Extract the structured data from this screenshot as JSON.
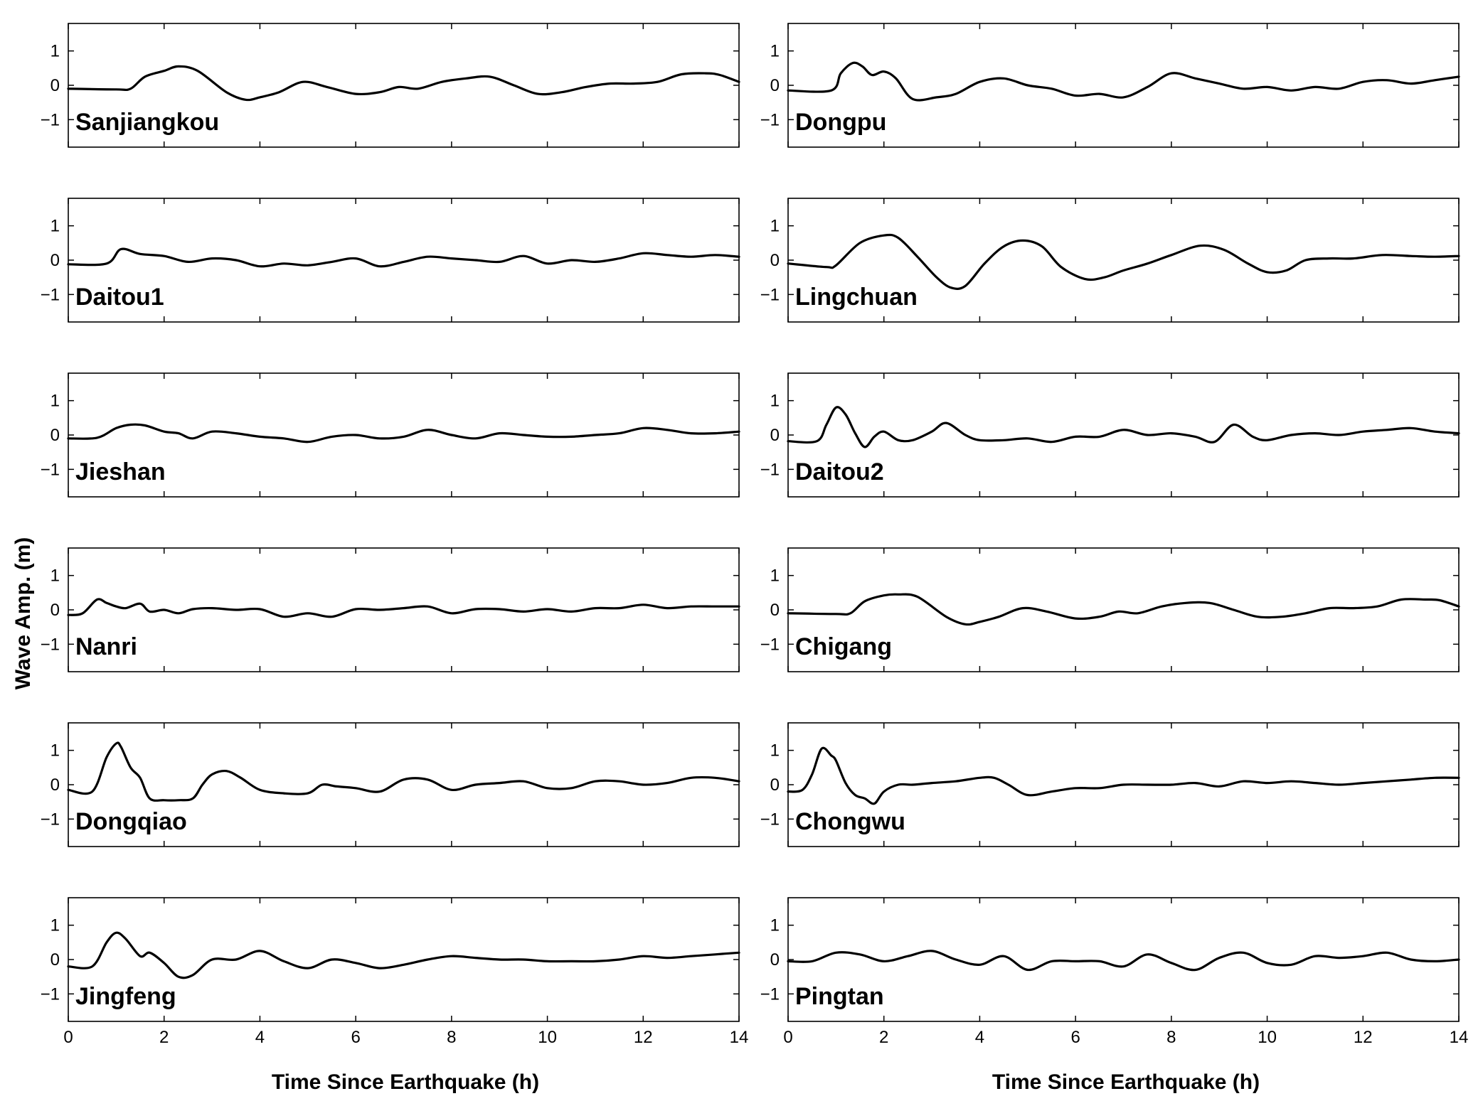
{
  "chart_data": {
    "type": "line",
    "layout": "6x2 small multiples",
    "ylabel": "Wave Amp. (m)",
    "xlabel": "Time Since Earthquake (h)",
    "xlim": [
      0,
      14
    ],
    "ylim": [
      -1.8,
      1.8
    ],
    "xticks": [
      0,
      2,
      4,
      6,
      8,
      10,
      12,
      14
    ],
    "yticks": [
      -1,
      0,
      1
    ],
    "ytick_labels": [
      "−1",
      "0",
      "1"
    ],
    "colors": {
      "line": "#000000",
      "axes": "#000000",
      "background": "#ffffff"
    },
    "panels": [
      {
        "name": "Sanjiangkou",
        "column": "left",
        "row": 0,
        "x": [
          0,
          1,
          1.3,
          1.6,
          2,
          2.3,
          2.7,
          3.3,
          3.7,
          4,
          4.4,
          4.9,
          5.4,
          6,
          6.5,
          6.9,
          7.3,
          7.8,
          8.3,
          8.8,
          9.3,
          9.8,
          10.3,
          10.8,
          11.3,
          11.8,
          12.3,
          12.8,
          13.3,
          13.6,
          14
        ],
        "y": [
          -0.1,
          -0.12,
          -0.1,
          0.25,
          0.42,
          0.55,
          0.42,
          -0.2,
          -0.42,
          -0.35,
          -0.2,
          0.1,
          -0.05,
          -0.25,
          -0.2,
          -0.05,
          -0.1,
          0.1,
          0.2,
          0.25,
          0,
          -0.25,
          -0.2,
          -0.05,
          0.05,
          0.05,
          0.1,
          0.32,
          0.35,
          0.3,
          0.1
        ]
      },
      {
        "name": "Dongpu",
        "column": "right",
        "row": 0,
        "x": [
          0,
          0.9,
          1.1,
          1.35,
          1.55,
          1.75,
          2,
          2.25,
          2.6,
          3.1,
          3.5,
          4,
          4.5,
          5,
          5.5,
          6,
          6.5,
          7,
          7.5,
          8,
          8.5,
          9,
          9.5,
          10,
          10.5,
          11,
          11.5,
          12,
          12.5,
          13,
          13.5,
          14
        ],
        "y": [
          -0.15,
          -0.15,
          0.35,
          0.65,
          0.55,
          0.3,
          0.4,
          0.2,
          -0.4,
          -0.35,
          -0.25,
          0.1,
          0.2,
          0,
          -0.1,
          -0.3,
          -0.25,
          -0.35,
          -0.05,
          0.35,
          0.2,
          0.05,
          -0.1,
          -0.05,
          -0.15,
          -0.05,
          -0.1,
          0.1,
          0.15,
          0.05,
          0.15,
          0.25
        ]
      },
      {
        "name": "Daitou1",
        "column": "left",
        "row": 1,
        "x": [
          0,
          0.8,
          1.1,
          1.5,
          2,
          2.5,
          3,
          3.5,
          4,
          4.5,
          5,
          5.5,
          6,
          6.5,
          7,
          7.5,
          8,
          8.5,
          9,
          9.5,
          10,
          10.5,
          11,
          11.5,
          12,
          12.5,
          13,
          13.5,
          14
        ],
        "y": [
          -0.12,
          -0.1,
          0.32,
          0.18,
          0.12,
          -0.05,
          0.05,
          0,
          -0.18,
          -0.1,
          -0.15,
          -0.05,
          0.05,
          -0.18,
          -0.05,
          0.1,
          0.05,
          0,
          -0.05,
          0.12,
          -0.1,
          0,
          -0.05,
          0.05,
          0.2,
          0.15,
          0.1,
          0.15,
          0.1
        ]
      },
      {
        "name": "Lingchuan",
        "column": "right",
        "row": 1,
        "x": [
          0,
          0.8,
          1,
          1.5,
          2,
          2.3,
          2.7,
          3.1,
          3.4,
          3.7,
          4.1,
          4.5,
          4.9,
          5.3,
          5.7,
          6.2,
          6.6,
          7,
          7.5,
          8,
          8.6,
          9.1,
          9.6,
          10,
          10.4,
          10.8,
          11.3,
          11.8,
          12.4,
          13,
          13.5,
          14
        ],
        "y": [
          -0.1,
          -0.2,
          -0.15,
          0.5,
          0.72,
          0.65,
          0.1,
          -0.5,
          -0.8,
          -0.75,
          -0.1,
          0.4,
          0.57,
          0.4,
          -0.2,
          -0.55,
          -0.5,
          -0.3,
          -0.1,
          0.15,
          0.42,
          0.3,
          -0.1,
          -0.35,
          -0.3,
          0,
          0.05,
          0.05,
          0.15,
          0.12,
          0.1,
          0.12
        ]
      },
      {
        "name": "Jieshan",
        "column": "left",
        "row": 2,
        "x": [
          0,
          0.6,
          1,
          1.3,
          1.6,
          2,
          2.3,
          2.6,
          3,
          3.5,
          4,
          4.5,
          5,
          5.5,
          6,
          6.5,
          7,
          7.5,
          8,
          8.5,
          9,
          9.5,
          10,
          10.5,
          11,
          11.5,
          12,
          12.5,
          13,
          13.5,
          14
        ],
        "y": [
          -0.1,
          -0.08,
          0.2,
          0.3,
          0.28,
          0.1,
          0.05,
          -0.1,
          0.1,
          0.05,
          -0.05,
          -0.1,
          -0.2,
          -0.05,
          0,
          -0.1,
          -0.05,
          0.15,
          0,
          -0.1,
          0.05,
          0,
          -0.05,
          -0.05,
          0,
          0.05,
          0.2,
          0.15,
          0.05,
          0.05,
          0.1
        ]
      },
      {
        "name": "Daitou2",
        "column": "right",
        "row": 2,
        "x": [
          0,
          0.6,
          0.8,
          1,
          1.2,
          1.4,
          1.6,
          1.8,
          2,
          2.3,
          2.6,
          3,
          3.3,
          3.7,
          4,
          4.5,
          5,
          5.5,
          6,
          6.5,
          7,
          7.5,
          8,
          8.5,
          8.9,
          9.3,
          9.7,
          10,
          10.5,
          11,
          11.5,
          12,
          12.5,
          13,
          13.5,
          14
        ],
        "y": [
          -0.18,
          -0.18,
          0.3,
          0.8,
          0.6,
          0.05,
          -0.35,
          -0.05,
          0.1,
          -0.15,
          -0.15,
          0.1,
          0.35,
          0,
          -0.15,
          -0.15,
          -0.1,
          -0.2,
          -0.05,
          -0.05,
          0.15,
          0,
          0.05,
          -0.05,
          -0.2,
          0.3,
          -0.05,
          -0.15,
          0,
          0.05,
          0,
          0.1,
          0.15,
          0.2,
          0.1,
          0.05
        ]
      },
      {
        "name": "Nanri",
        "column": "left",
        "row": 3,
        "x": [
          0,
          0.3,
          0.6,
          0.8,
          1,
          1.2,
          1.5,
          1.7,
          2,
          2.3,
          2.6,
          3,
          3.5,
          4,
          4.5,
          5,
          5.5,
          6,
          6.5,
          7,
          7.5,
          8,
          8.5,
          9,
          9.5,
          10,
          10.5,
          11,
          11.5,
          12,
          12.5,
          13,
          13.5,
          14
        ],
        "y": [
          -0.15,
          -0.1,
          0.3,
          0.2,
          0.1,
          0.05,
          0.18,
          -0.05,
          0,
          -0.1,
          0.02,
          0.05,
          0,
          0.02,
          -0.2,
          -0.1,
          -0.2,
          0.02,
          0,
          0.05,
          0.1,
          -0.1,
          0.02,
          0.02,
          -0.05,
          0.02,
          -0.05,
          0.05,
          0.05,
          0.15,
          0.05,
          0.1,
          0.1,
          0.1
        ]
      },
      {
        "name": "Chigang",
        "column": "right",
        "row": 3,
        "x": [
          0,
          1,
          1.3,
          1.6,
          2,
          2.3,
          2.7,
          3.3,
          3.7,
          4,
          4.4,
          4.9,
          5.4,
          6,
          6.5,
          6.9,
          7.3,
          7.8,
          8.3,
          8.8,
          9.3,
          9.8,
          10.3,
          10.8,
          11.3,
          11.8,
          12.3,
          12.8,
          13.3,
          13.6,
          14
        ],
        "y": [
          -0.1,
          -0.12,
          -0.1,
          0.25,
          0.42,
          0.45,
          0.38,
          -0.2,
          -0.42,
          -0.35,
          -0.2,
          0.05,
          -0.05,
          -0.25,
          -0.2,
          -0.05,
          -0.1,
          0.1,
          0.2,
          0.2,
          0,
          -0.2,
          -0.2,
          -0.1,
          0.05,
          0.05,
          0.1,
          0.3,
          0.3,
          0.28,
          0.1
        ]
      },
      {
        "name": "Dongqiao",
        "column": "left",
        "row": 4,
        "x": [
          0,
          0.5,
          0.8,
          1,
          1.1,
          1.3,
          1.5,
          1.7,
          2,
          2.3,
          2.6,
          2.8,
          3,
          3.3,
          3.6,
          4,
          4.5,
          5,
          5.3,
          5.6,
          6,
          6.5,
          7,
          7.5,
          8,
          8.5,
          9,
          9.5,
          10,
          10.5,
          11,
          11.5,
          12,
          12.5,
          13,
          13.5,
          14
        ],
        "y": [
          -0.15,
          -0.2,
          0.8,
          1.2,
          1.1,
          0.5,
          0.2,
          -0.4,
          -0.45,
          -0.45,
          -0.4,
          0,
          0.3,
          0.4,
          0.2,
          -0.15,
          -0.25,
          -0.25,
          0,
          -0.05,
          -0.1,
          -0.2,
          0.15,
          0.15,
          -0.15,
          0,
          0.05,
          0.1,
          -0.1,
          -0.1,
          0.1,
          0.1,
          0,
          0.05,
          0.2,
          0.2,
          0.1
        ]
      },
      {
        "name": "Chongwu",
        "column": "right",
        "row": 4,
        "x": [
          0,
          0.3,
          0.5,
          0.7,
          0.9,
          1,
          1.2,
          1.4,
          1.6,
          1.8,
          2,
          2.3,
          2.6,
          3,
          3.5,
          4,
          4.3,
          4.6,
          5,
          5.5,
          6,
          6.5,
          7,
          7.5,
          8,
          8.5,
          9,
          9.5,
          10,
          10.5,
          11,
          11.5,
          12,
          12.5,
          13,
          13.5,
          14
        ],
        "y": [
          -0.2,
          -0.15,
          0.3,
          1.05,
          0.85,
          0.7,
          0.05,
          -0.3,
          -0.4,
          -0.55,
          -0.2,
          0,
          0,
          0.05,
          0.1,
          0.2,
          0.2,
          0,
          -0.3,
          -0.2,
          -0.1,
          -0.1,
          0,
          0,
          0,
          0.05,
          -0.05,
          0.1,
          0.05,
          0.1,
          0.05,
          0,
          0.05,
          0.1,
          0.15,
          0.2,
          0.2
        ]
      },
      {
        "name": "Jingfeng",
        "column": "left",
        "row": 5,
        "x": [
          0,
          0.5,
          0.8,
          1,
          1.2,
          1.5,
          1.7,
          2,
          2.3,
          2.6,
          3,
          3.5,
          4,
          4.5,
          5,
          5.5,
          6,
          6.5,
          7,
          7.5,
          8,
          8.5,
          9,
          9.5,
          10,
          10.5,
          11,
          11.5,
          12,
          12.5,
          13,
          13.5,
          14
        ],
        "y": [
          -0.2,
          -0.2,
          0.5,
          0.78,
          0.6,
          0.1,
          0.2,
          -0.1,
          -0.5,
          -0.45,
          0,
          0,
          0.25,
          -0.05,
          -0.25,
          0,
          -0.1,
          -0.25,
          -0.15,
          0,
          0.1,
          0.05,
          0,
          0,
          -0.05,
          -0.05,
          -0.05,
          0,
          0.1,
          0.05,
          0.1,
          0.15,
          0.2
        ]
      },
      {
        "name": "Pingtan",
        "column": "right",
        "row": 5,
        "x": [
          0,
          0.5,
          1,
          1.5,
          2,
          2.5,
          3,
          3.5,
          4,
          4.5,
          5,
          5.5,
          6,
          6.5,
          7,
          7.5,
          8,
          8.5,
          9,
          9.5,
          10,
          10.5,
          11,
          11.5,
          12,
          12.5,
          13,
          13.5,
          14
        ],
        "y": [
          -0.05,
          -0.05,
          0.2,
          0.15,
          -0.05,
          0.1,
          0.25,
          0,
          -0.15,
          0.1,
          -0.3,
          -0.05,
          -0.05,
          -0.05,
          -0.2,
          0.15,
          -0.1,
          -0.3,
          0.05,
          0.2,
          -0.1,
          -0.15,
          0.1,
          0.05,
          0.1,
          0.2,
          0,
          -0.05,
          0
        ]
      }
    ]
  }
}
